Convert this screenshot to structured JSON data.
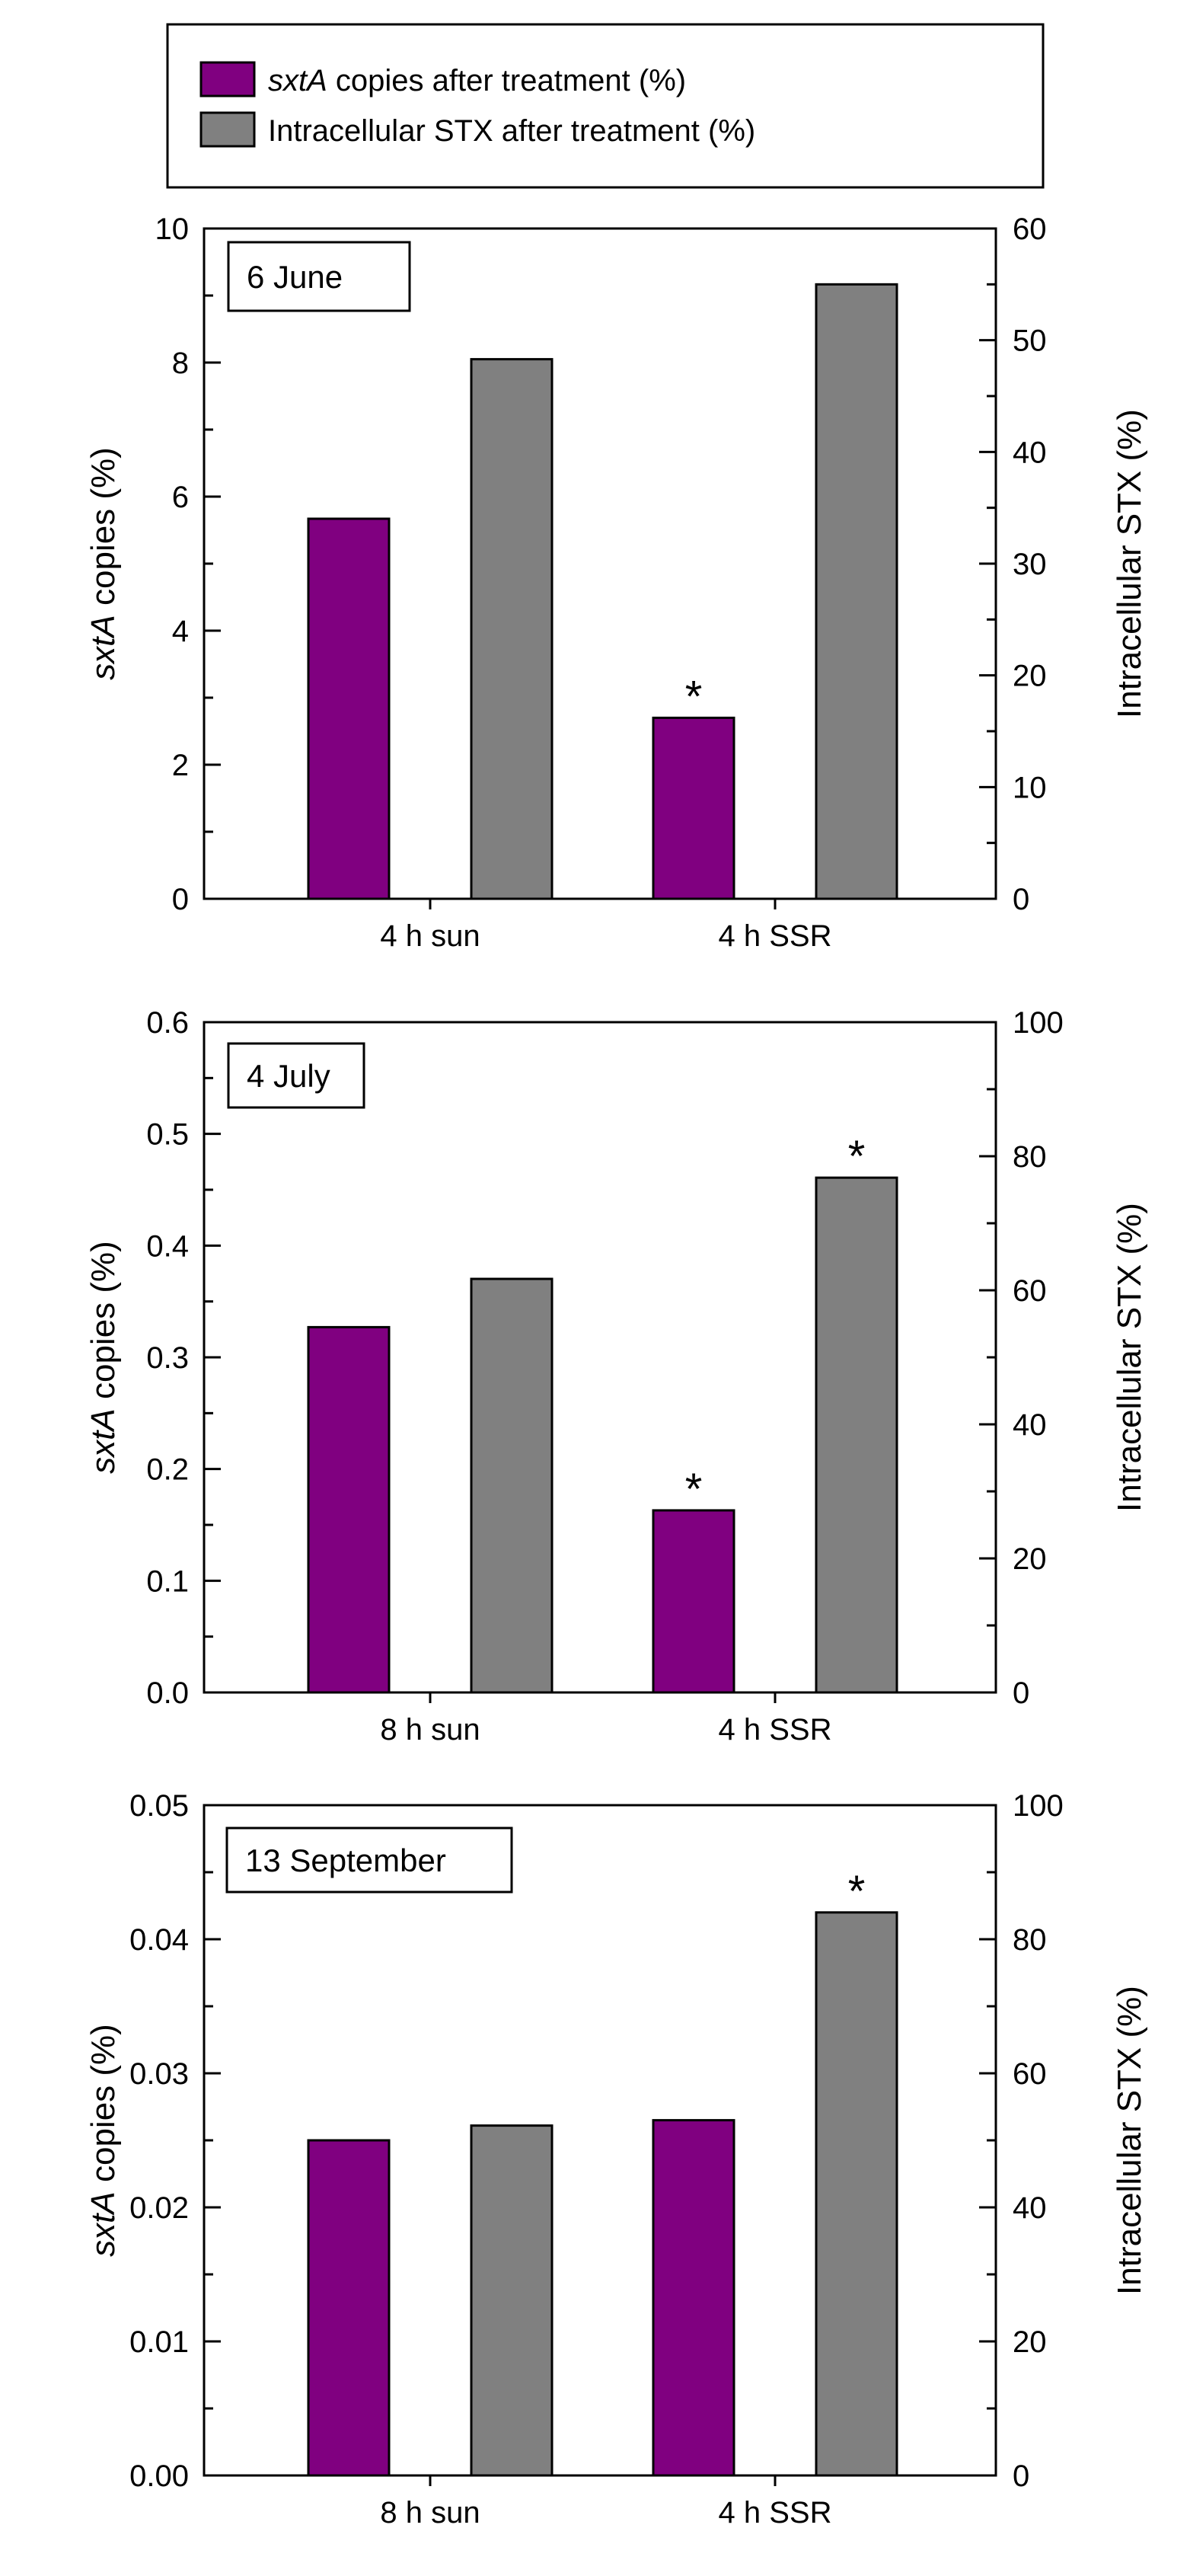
{
  "legend": {
    "items": [
      {
        "name": "sxtA copies after treatment (%)",
        "italic_part": "sxtA",
        "rest": " copies after treatment (%)",
        "color": "#800080"
      },
      {
        "name": "Intracellular STX after treatment (%)",
        "italic_part": "",
        "rest": "Intracellular STX after treatment (%)",
        "color": "#808080"
      }
    ]
  },
  "colors": {
    "purple": "#800080",
    "gray": "#808080",
    "border": "#000000"
  },
  "chart_data": [
    {
      "type": "bar",
      "panel_label": "6 June",
      "categories": [
        "4 h sun",
        "4 h SSR"
      ],
      "series": [
        {
          "name": "sxtA copies after treatment (%)",
          "axis": "left",
          "values": [
            5.67,
            2.7
          ],
          "significant": [
            false,
            true
          ]
        },
        {
          "name": "Intracellular STX after treatment (%)",
          "axis": "right",
          "values": [
            48.3,
            55.0
          ],
          "significant": [
            false,
            false
          ]
        }
      ],
      "ylabel_left_italic": "sxtA",
      "ylabel_left_rest": " copies (%)",
      "ylabel_right": "Intracellular STX (%)",
      "ylim_left": [
        0,
        10
      ],
      "yticks_left": [
        "0",
        "2",
        "4",
        "6",
        "8",
        "10"
      ],
      "ylim_right": [
        0,
        60
      ],
      "yticks_right": [
        "0",
        "10",
        "20",
        "30",
        "40",
        "50",
        "60"
      ],
      "significance_marker": "*"
    },
    {
      "type": "bar",
      "panel_label": "4 July",
      "categories": [
        "8 h sun",
        "4 h SSR"
      ],
      "series": [
        {
          "name": "sxtA copies after treatment (%)",
          "axis": "left",
          "values": [
            0.327,
            0.163
          ],
          "significant": [
            false,
            true
          ]
        },
        {
          "name": "Intracellular STX after treatment (%)",
          "axis": "right",
          "values": [
            61.7,
            76.8
          ],
          "significant": [
            false,
            true
          ]
        }
      ],
      "ylabel_left_italic": "sxtA",
      "ylabel_left_rest": " copies (%)",
      "ylabel_right": "Intracellular STX (%)",
      "ylim_left": [
        0,
        0.6
      ],
      "yticks_left": [
        "0.0",
        "0.1",
        "0.2",
        "0.3",
        "0.4",
        "0.5",
        "0.6"
      ],
      "ylim_right": [
        0,
        100
      ],
      "yticks_right": [
        "0",
        "20",
        "40",
        "60",
        "80",
        "100"
      ],
      "significance_marker": "*"
    },
    {
      "type": "bar",
      "panel_label": "13 September",
      "categories": [
        "8 h sun",
        "4 h SSR"
      ],
      "series": [
        {
          "name": "sxtA copies after treatment (%)",
          "axis": "left",
          "values": [
            0.025,
            0.0265
          ],
          "significant": [
            false,
            false
          ]
        },
        {
          "name": "Intracellular STX after treatment (%)",
          "axis": "right",
          "values": [
            52.2,
            84.0
          ],
          "significant": [
            false,
            true
          ]
        }
      ],
      "ylabel_left_italic": "sxtA",
      "ylabel_left_rest": " copies (%)",
      "ylabel_right": "Intracellular STX (%)",
      "ylim_left": [
        0,
        0.05
      ],
      "yticks_left": [
        "0.00",
        "0.01",
        "0.02",
        "0.03",
        "0.04",
        "0.05"
      ],
      "ylim_right": [
        0,
        100
      ],
      "yticks_right": [
        "0",
        "20",
        "40",
        "60",
        "80",
        "100"
      ],
      "significance_marker": "*"
    }
  ]
}
